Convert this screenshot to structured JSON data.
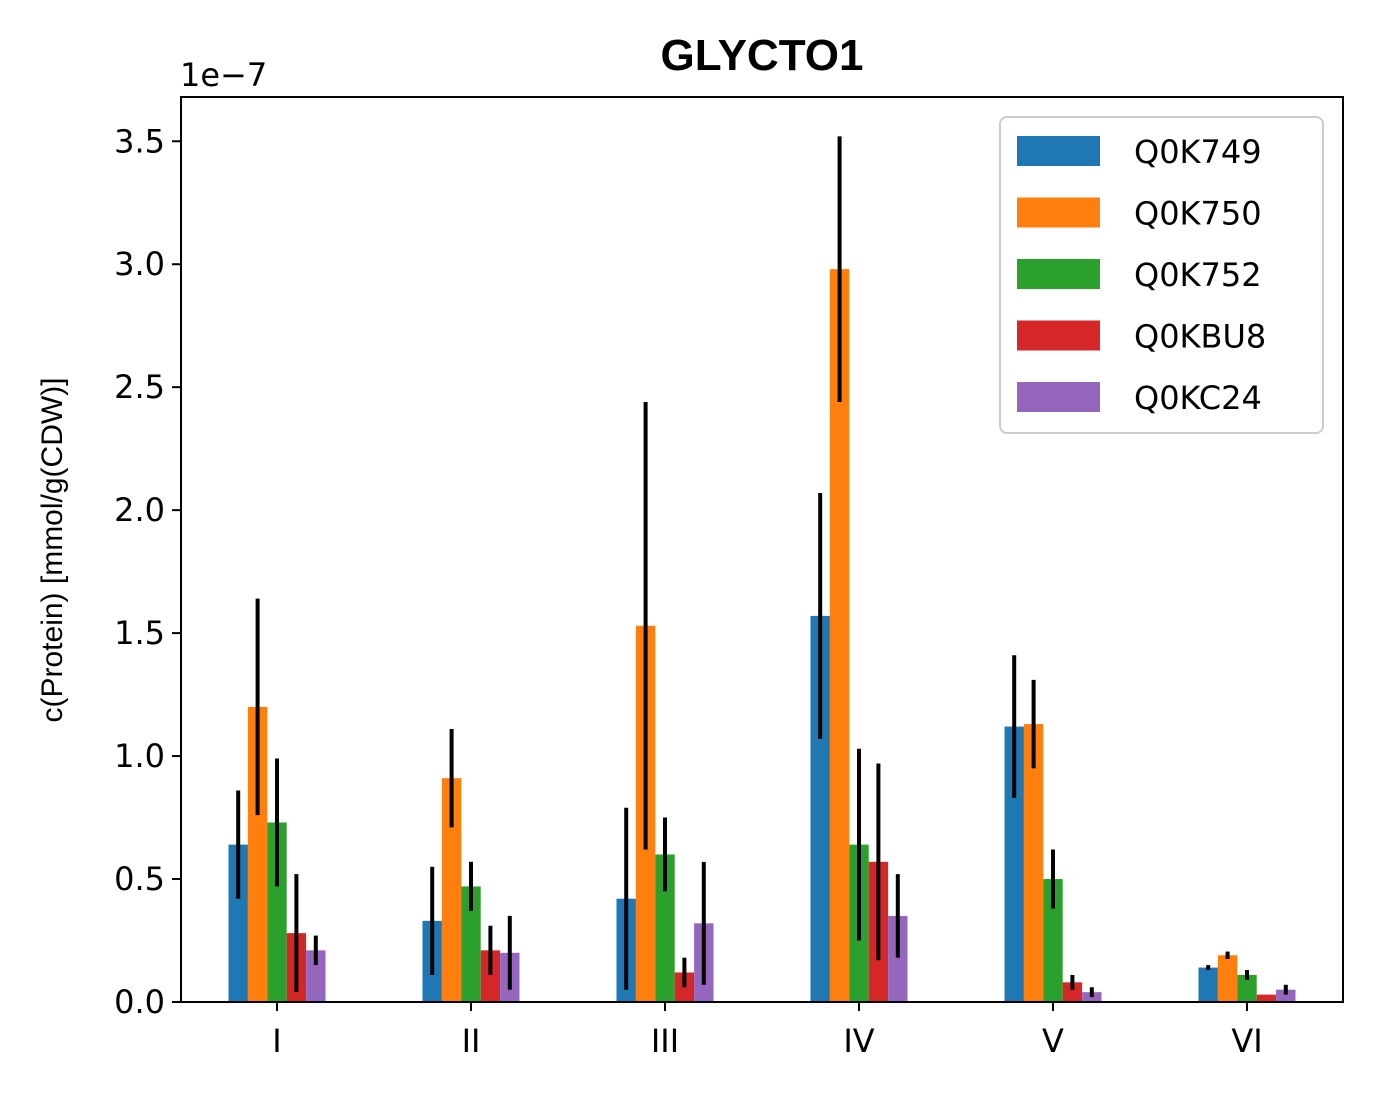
{
  "chart_data": {
    "type": "bar",
    "title": "GLYCTO1",
    "xlabel": "",
    "ylabel": "c(Protein) [mmol/g(CDW)]",
    "offset_label": "1e−7",
    "categories": [
      "I",
      "II",
      "III",
      "IV",
      "V",
      "VI"
    ],
    "ylim": [
      0.0,
      3.68
    ],
    "yticks": [
      0.0,
      0.5,
      1.0,
      1.5,
      2.0,
      2.5,
      3.0,
      3.5
    ],
    "ytick_labels": [
      "0.0",
      "0.5",
      "1.0",
      "1.5",
      "2.0",
      "2.5",
      "3.0",
      "3.5"
    ],
    "grid": false,
    "legend_position": "top-right",
    "error_bars": true,
    "series": [
      {
        "name": "Q0K749",
        "color": "#1f77b4",
        "values": [
          0.64,
          0.33,
          0.42,
          1.57,
          1.12,
          0.14
        ],
        "errors": [
          0.22,
          0.22,
          0.37,
          0.5,
          0.29,
          0.01
        ]
      },
      {
        "name": "Q0K750",
        "color": "#ff7f0e",
        "values": [
          1.2,
          0.91,
          1.53,
          2.98,
          1.13,
          0.19
        ],
        "errors": [
          0.44,
          0.2,
          0.91,
          0.54,
          0.18,
          0.015
        ]
      },
      {
        "name": "Q0K752",
        "color": "#2ca02c",
        "values": [
          0.73,
          0.47,
          0.6,
          0.64,
          0.5,
          0.11
        ],
        "errors": [
          0.26,
          0.1,
          0.15,
          0.39,
          0.12,
          0.02
        ]
      },
      {
        "name": "Q0KBU8",
        "color": "#d62728",
        "values": [
          0.28,
          0.21,
          0.12,
          0.57,
          0.08,
          0.03
        ],
        "errors": [
          0.24,
          0.1,
          0.06,
          0.4,
          0.03,
          0.0
        ]
      },
      {
        "name": "Q0KC24",
        "color": "#9467bd",
        "values": [
          0.21,
          0.2,
          0.32,
          0.35,
          0.04,
          0.05
        ],
        "errors": [
          0.06,
          0.15,
          0.25,
          0.17,
          0.02,
          0.02
        ]
      }
    ]
  }
}
